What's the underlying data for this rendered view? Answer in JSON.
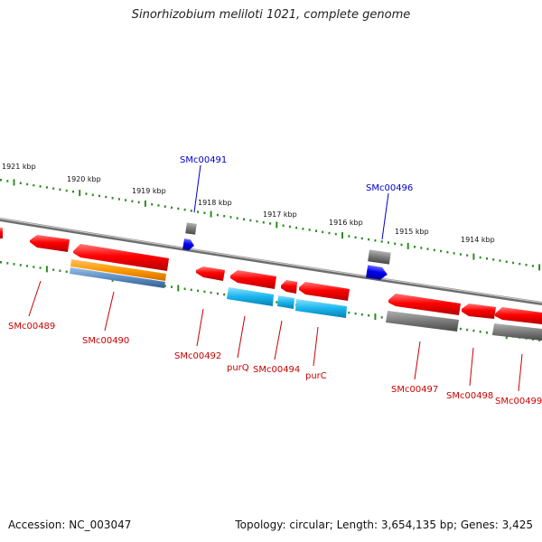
{
  "title": "Sinorhizobium meliloti 1021, complete genome",
  "footer": {
    "accession": "Accession: NC_003047",
    "summary": "Topology: circular; Length: 3,654,135 bp; Genes: 3,425"
  },
  "colors": {
    "backbone": "#8c8c8c",
    "tick": "#2e8b22",
    "gene_cds": "#ff0000",
    "gene_other_strand": "#0000ee",
    "feature_grey": "#808080",
    "feature_orange": "#ff9900",
    "feature_steelblue": "#5b8ec4",
    "feature_cyan": "#19b5ee",
    "label_red": "#cc0000",
    "label_blue": "#0000cc"
  },
  "scale_labels": [
    "1921 kbp",
    "1920 kbp",
    "1919 kbp",
    "1918 kbp",
    "1917 kbp",
    "1916 kbp",
    "1915 kbp",
    "1914 kbp"
  ],
  "gene_labels": [
    {
      "id": "SMc00489",
      "strand": "reverse"
    },
    {
      "id": "SMc00490",
      "strand": "reverse"
    },
    {
      "id": "SMc00491",
      "strand": "forward"
    },
    {
      "id": "SMc00492",
      "strand": "reverse"
    },
    {
      "id": "purQ",
      "strand": "reverse"
    },
    {
      "id": "SMc00494",
      "strand": "reverse"
    },
    {
      "id": "purC",
      "strand": "reverse"
    },
    {
      "id": "SMc00496",
      "strand": "forward"
    },
    {
      "id": "SMc00497",
      "strand": "reverse"
    },
    {
      "id": "SMc00498",
      "strand": "reverse"
    },
    {
      "id": "SMc00499",
      "strand": "reverse"
    }
  ]
}
